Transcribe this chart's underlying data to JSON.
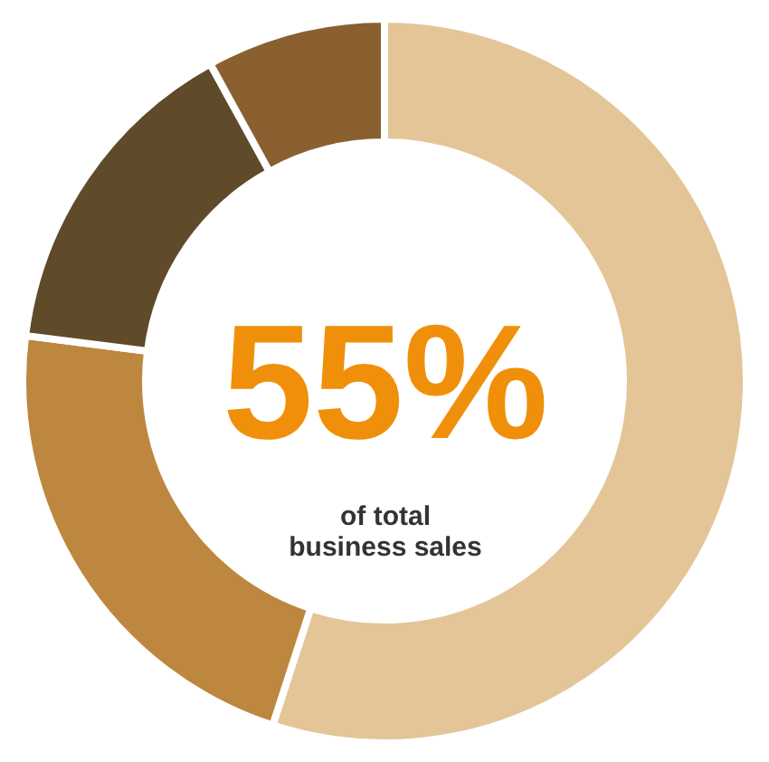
{
  "chart_data": {
    "type": "donut",
    "categories": [
      null,
      null,
      null,
      null
    ],
    "values": [
      55,
      22,
      15,
      8
    ],
    "colors": [
      "#e3c597",
      "#bd873f",
      "#5f4a29",
      "#8a6030"
    ],
    "annotations": [
      "55%",
      "of total",
      "business sales"
    ]
  }
}
